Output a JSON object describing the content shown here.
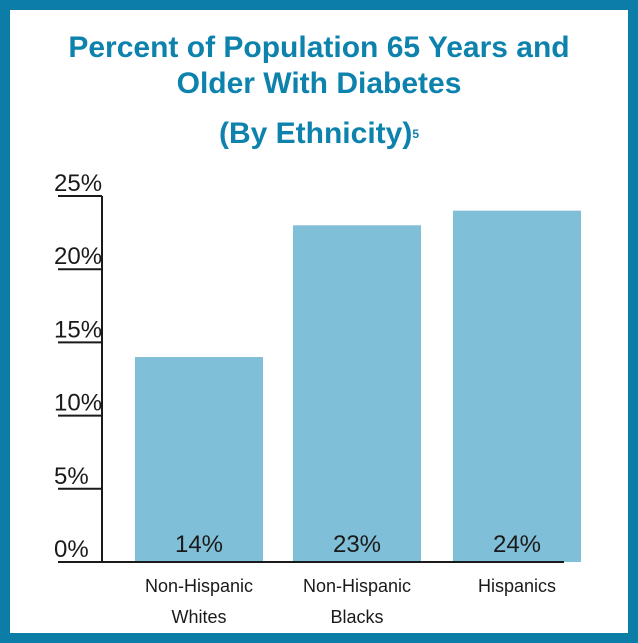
{
  "title": "Percent of Population 65 Years and Older With Diabetes",
  "subtitle": "(By Ethnicity)",
  "subtitle_footnote": "5",
  "colors": {
    "frame": "#0c7da6",
    "title": "#0d82ad",
    "bar": "#80bfd8",
    "axis": "#1a1a1a"
  },
  "chart_data": {
    "type": "bar",
    "categories": [
      "Non-Hispanic Whites",
      "Non-Hispanic Blacks",
      "Hispanics"
    ],
    "category_lines": [
      [
        "Non-Hispanic",
        "Whites"
      ],
      [
        "Non-Hispanic",
        "Blacks"
      ],
      [
        "Hispanics"
      ]
    ],
    "values": [
      14,
      23,
      24
    ],
    "data_labels": [
      "14%",
      "23%",
      "24%"
    ],
    "yticks": [
      0,
      5,
      10,
      15,
      20,
      25
    ],
    "ytick_labels": [
      "0%",
      "5%",
      "10%",
      "15%",
      "20%",
      "25%"
    ],
    "ylim": [
      0,
      25
    ],
    "title": "Percent of Population 65 Years and Older With Diabetes (By Ethnicity)",
    "xlabel": "",
    "ylabel": "",
    "grid": false,
    "legend": "none"
  }
}
